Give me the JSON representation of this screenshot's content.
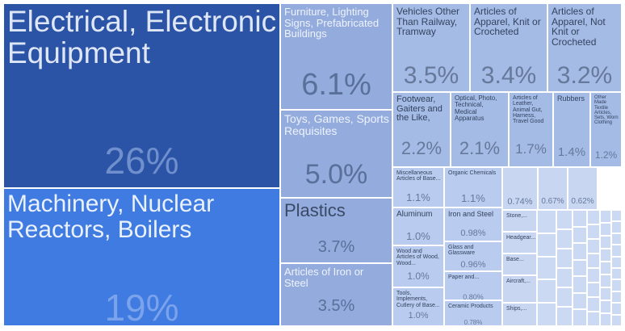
{
  "chart_data": {
    "type": "treemap",
    "tiles": [
      {
        "label": "Electrical, Electronic Equipment",
        "value": "26%",
        "color": "#2b54a6",
        "tc": "#dfe7f7",
        "pc": "#6f8fcd",
        "lf": 37,
        "pf": 46
      },
      {
        "label": "Machinery, Nuclear Reactors, Boilers",
        "value": "19%",
        "color": "#3f7be0",
        "tc": "#eaf1fd",
        "pc": "#7aa3ec",
        "lf": 30,
        "pf": 46
      },
      {
        "label": "Furniture, Lighting Signs, Prefabricated Buildings",
        "value": "6.1%",
        "color": "#93acdd",
        "tc": "#eef2fb",
        "pc": "#5a6f99",
        "lf": 13,
        "pf": 38
      },
      {
        "label": "Toys, Games, Sports Requisites",
        "value": "5.0%",
        "color": "#93acdd",
        "tc": "#eef2fb",
        "pc": "#5a6f99",
        "lf": 14,
        "pf": 34
      },
      {
        "label": "Plastics",
        "value": "3.7%",
        "color": "#93acdd",
        "tc": "#3a4a66",
        "pc": "#5a6f99",
        "lf": 22,
        "pf": 20
      },
      {
        "label": "Articles of Iron or Steel",
        "value": "3.5%",
        "color": "#93acdd",
        "tc": "#eef2fb",
        "pc": "#5a6f99",
        "lf": 13,
        "pf": 20
      },
      {
        "label": "Vehicles Other Than Railway, Tramway",
        "value": "3.5%",
        "color": "#a4bbe6",
        "tc": "#33435e",
        "pc": "#66799b",
        "lf": 12,
        "pf": 30
      },
      {
        "label": "Articles of Apparel, Knit or Crocheted",
        "value": "3.4%",
        "color": "#a4bbe6",
        "tc": "#33435e",
        "pc": "#66799b",
        "lf": 12,
        "pf": 30
      },
      {
        "label": "Articles of Apparel, Not Knit or Crocheted",
        "value": "3.2%",
        "color": "#a4bbe6",
        "tc": "#33435e",
        "pc": "#66799b",
        "lf": 12,
        "pf": 30
      },
      {
        "label": "Footwear, Gaiters and the Like,",
        "value": "2.2%",
        "color": "#a4bbe6",
        "tc": "#33435e",
        "pc": "#66799b",
        "lf": 11,
        "pf": 22
      },
      {
        "label": "Optical, Photo, Technical, Medical Apparatus",
        "value": "2.1%",
        "color": "#a4bbe6",
        "tc": "#33435e",
        "pc": "#66799b",
        "lf": 8,
        "pf": 22
      },
      {
        "label": "Articles of Leather, Animal Gut, Harness, Travel Good",
        "value": "1.7%",
        "color": "#a4bbe6",
        "tc": "#33435e",
        "pc": "#66799b",
        "lf": 7,
        "pf": 17
      },
      {
        "label": "Rubbers",
        "value": "1.4%",
        "color": "#a4bbe6",
        "tc": "#33435e",
        "pc": "#66799b",
        "lf": 9,
        "pf": 15
      },
      {
        "label": "Other Made Textile Articles, Sets, Worn Clothing",
        "value": "1.2%",
        "color": "#a4bbe6",
        "tc": "#33435e",
        "pc": "#66799b",
        "lf": 6,
        "pf": 12
      },
      {
        "label": "Miscellaneous Articles of Base...",
        "value": "1.1%",
        "color": "#b9cbee",
        "tc": "#33435e",
        "pc": "#66799b",
        "lf": 7,
        "pf": 13
      },
      {
        "label": "Organic Chemicals",
        "value": "1.1%",
        "color": "#b9cbee",
        "tc": "#33435e",
        "pc": "#66799b",
        "lf": 7,
        "pf": 13
      },
      {
        "label": "Aluminum",
        "value": "1.0%",
        "color": "#b9cbee",
        "tc": "#33435e",
        "pc": "#66799b",
        "lf": 10,
        "pf": 13
      },
      {
        "label": "Wood and Articles of Wood, Wood...",
        "value": "1.0%",
        "color": "#b9cbee",
        "tc": "#33435e",
        "pc": "#66799b",
        "lf": 7,
        "pf": 12
      },
      {
        "label": "Tools, Implements, Cutlery of Base...",
        "value": "1.0%",
        "color": "#b9cbee",
        "tc": "#33435e",
        "pc": "#66799b",
        "lf": 7,
        "pf": 11
      },
      {
        "label": "Iron and Steel",
        "value": "0.98%",
        "color": "#b9cbee",
        "tc": "#33435e",
        "pc": "#66799b",
        "lf": 9,
        "pf": 11
      },
      {
        "label": "Glass and Glassware",
        "value": "0.96%",
        "color": "#b9cbee",
        "tc": "#33435e",
        "pc": "#66799b",
        "lf": 7,
        "pf": 11
      },
      {
        "label": "Paper and...",
        "value": "0.80%",
        "color": "#b9cbee",
        "tc": "#33435e",
        "pc": "#66799b",
        "lf": 7,
        "pf": 9
      },
      {
        "label": "Ceramic Products",
        "value": "0.78%",
        "color": "#b9cbee",
        "tc": "#33435e",
        "pc": "#66799b",
        "lf": 7,
        "pf": 8
      },
      {
        "label": "",
        "value": "0.74%",
        "color": "#c8d6f2",
        "tc": "#33435e",
        "pc": "#66799b",
        "lf": 7,
        "pf": 11
      },
      {
        "label": "",
        "value": "0.67%",
        "color": "#c8d6f2",
        "tc": "#33435e",
        "pc": "#66799b",
        "lf": 7,
        "pf": 10
      },
      {
        "label": "",
        "value": "0.62%",
        "color": "#c8d6f2",
        "tc": "#33435e",
        "pc": "#66799b",
        "lf": 7,
        "pf": 10
      },
      {
        "label": "Stone,...",
        "value": "",
        "color": "#c8d6f2",
        "tc": "#33435e",
        "pc": "#66799b",
        "lf": 7,
        "pf": 8
      },
      {
        "label": "Headgear...",
        "value": "",
        "color": "#c8d6f2",
        "tc": "#33435e",
        "pc": "#66799b",
        "lf": 7,
        "pf": 8
      },
      {
        "label": "Base...",
        "value": "",
        "color": "#c8d6f2",
        "tc": "#33435e",
        "pc": "#66799b",
        "lf": 7,
        "pf": 8
      },
      {
        "label": "Aircraft,...",
        "value": "",
        "color": "#c8d6f2",
        "tc": "#33435e",
        "pc": "#66799b",
        "lf": 7,
        "pf": 8
      },
      {
        "label": "Ships,...",
        "value": "",
        "color": "#c8d6f2",
        "tc": "#33435e",
        "pc": "#66799b",
        "lf": 7,
        "pf": 8
      }
    ]
  }
}
